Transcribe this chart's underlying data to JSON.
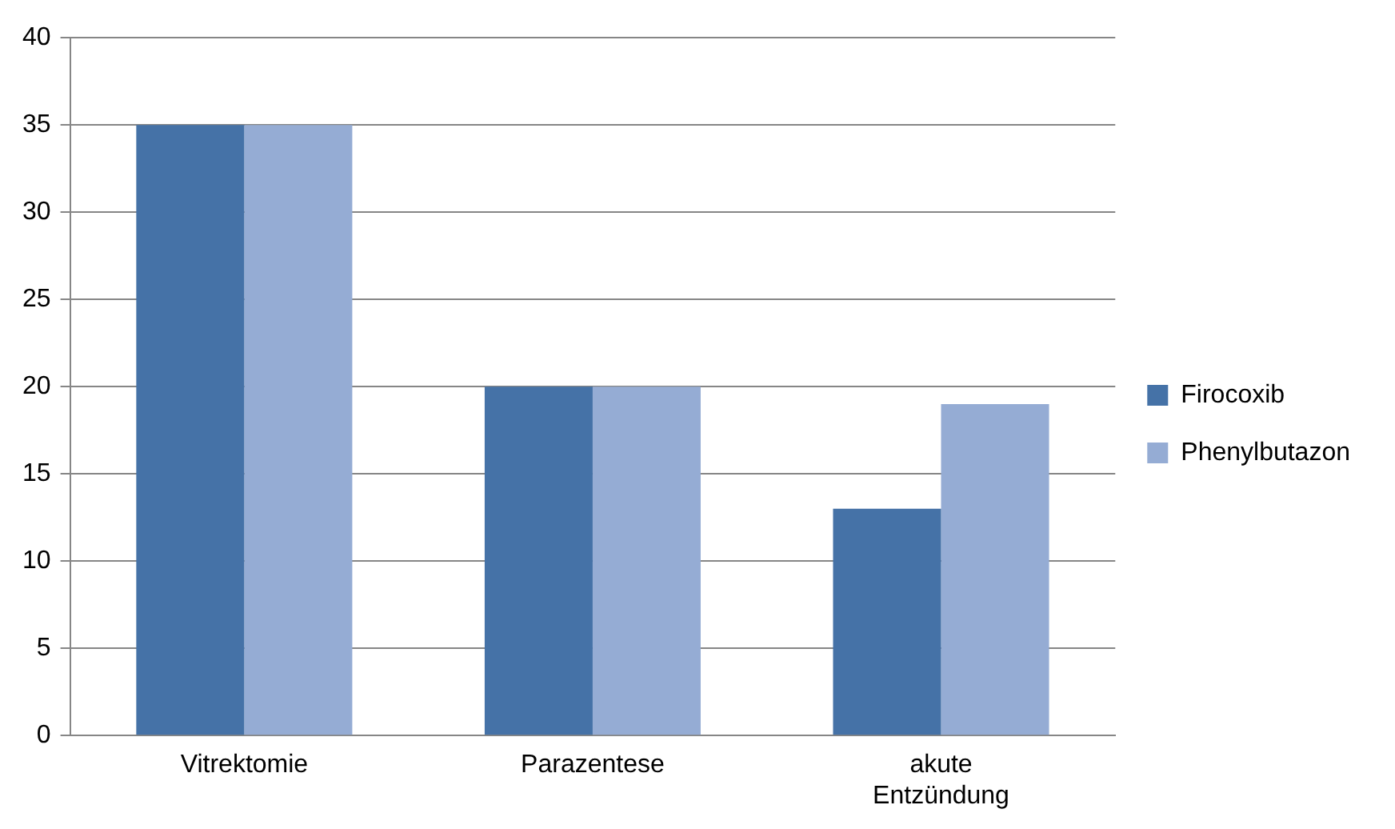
{
  "chart_data": {
    "type": "bar",
    "categories": [
      "Vitrektomie",
      "Parazentese",
      "akute Entzündung"
    ],
    "series": [
      {
        "name": "Firocoxib",
        "color": "#4572a7",
        "values": [
          35,
          20,
          13
        ]
      },
      {
        "name": "Phenylbutazon",
        "color": "#95acd4",
        "values": [
          35,
          20,
          19
        ]
      }
    ],
    "ylim": [
      0,
      40
    ],
    "yticks": [
      0,
      5,
      10,
      15,
      20,
      25,
      30,
      35,
      40
    ],
    "grid": "y",
    "legend": "right"
  }
}
